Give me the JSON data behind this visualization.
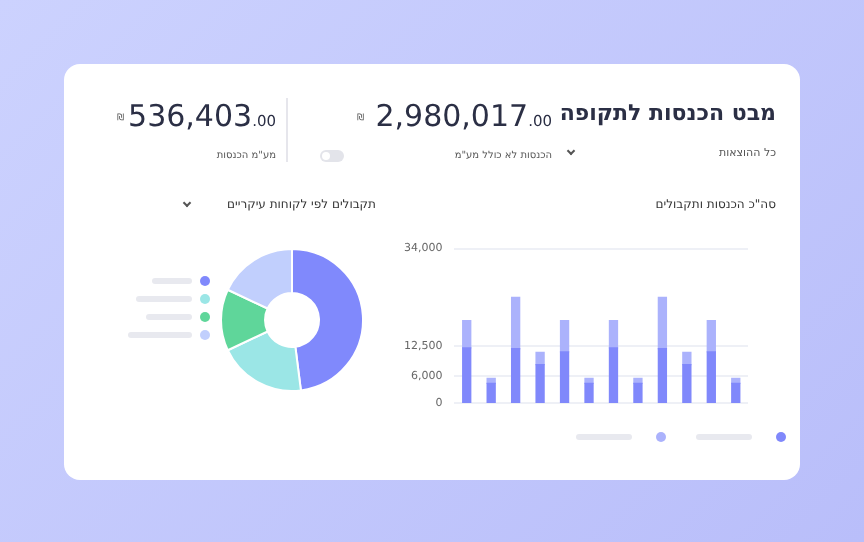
{
  "chart_data": [
    {
      "type": "other",
      "title": "מבט הכנסות לתקופה",
      "annotations": [
        "כל ההוצאות",
        "2,980,017.00",
        "₪",
        "הכנסות לא כולל מע\"מ",
        "536,403.00",
        "₪",
        "מע\"מ הכנסות"
      ]
    },
    {
      "type": "bar",
      "title": "סה\"כ הכנסות ותקבולים",
      "stacked": true,
      "categories": [
        null,
        null,
        null,
        null,
        null,
        null,
        null,
        null,
        null,
        null,
        null,
        null
      ],
      "series": [
        {
          "color": "#8088fb",
          "values": [
            12200,
            4400,
            12000,
            8500,
            11300,
            4400,
            12200,
            4400,
            12000,
            8500,
            11300,
            4400
          ]
        },
        {
          "color": "#abb2fc",
          "values": [
            6000,
            1100,
            11300,
            2700,
            6900,
            1100,
            6000,
            1100,
            11300,
            2700,
            6900,
            1100
          ]
        }
      ],
      "ylim": [
        0,
        34000
      ],
      "yticks": [
        0,
        {
          "value": 6000,
          "label": "6,000"
        },
        {
          "value": 12500,
          "label": "12,500"
        },
        {
          "value": 34000,
          "label": "34,000"
        }
      ],
      "grid": "y",
      "tick_labels": "y",
      "legend": false
    },
    {
      "type": "donut",
      "title": "תקבולים לפי לקוחות עיקריים",
      "categories": [
        null,
        null,
        null,
        null
      ],
      "values": [
        48,
        20,
        14,
        18
      ],
      "colors": [
        "#8089fc",
        "#9be6e6",
        "#5fd69a",
        "#c1cffd"
      ],
      "legend": false
    }
  ]
}
